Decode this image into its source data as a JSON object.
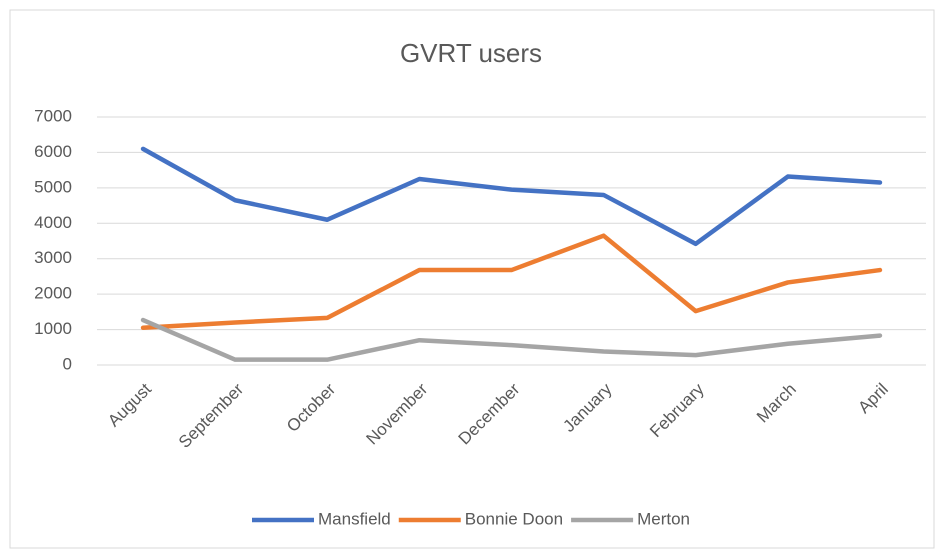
{
  "chart_data": {
    "type": "line",
    "title": "GVRT users",
    "categories": [
      "August",
      "September",
      "October",
      "November",
      "December",
      "January",
      "February",
      "March",
      "April"
    ],
    "series": [
      {
        "name": "Mansfield",
        "color": "#4472c4",
        "values": [
          6100,
          4650,
          4100,
          5250,
          4950,
          4800,
          3420,
          5320,
          5150
        ]
      },
      {
        "name": "Bonnie Doon",
        "color": "#ed7d31",
        "values": [
          1050,
          1200,
          1330,
          2680,
          2680,
          3650,
          1520,
          2330,
          2680
        ]
      },
      {
        "name": "Merton",
        "color": "#a5a5a5",
        "values": [
          1270,
          150,
          150,
          700,
          560,
          380,
          280,
          600,
          830
        ]
      }
    ],
    "ylim": [
      0,
      7000
    ],
    "yticks": [
      0,
      1000,
      2000,
      3000,
      4000,
      5000,
      6000,
      7000
    ],
    "grid": true,
    "legend": "bottom"
  }
}
